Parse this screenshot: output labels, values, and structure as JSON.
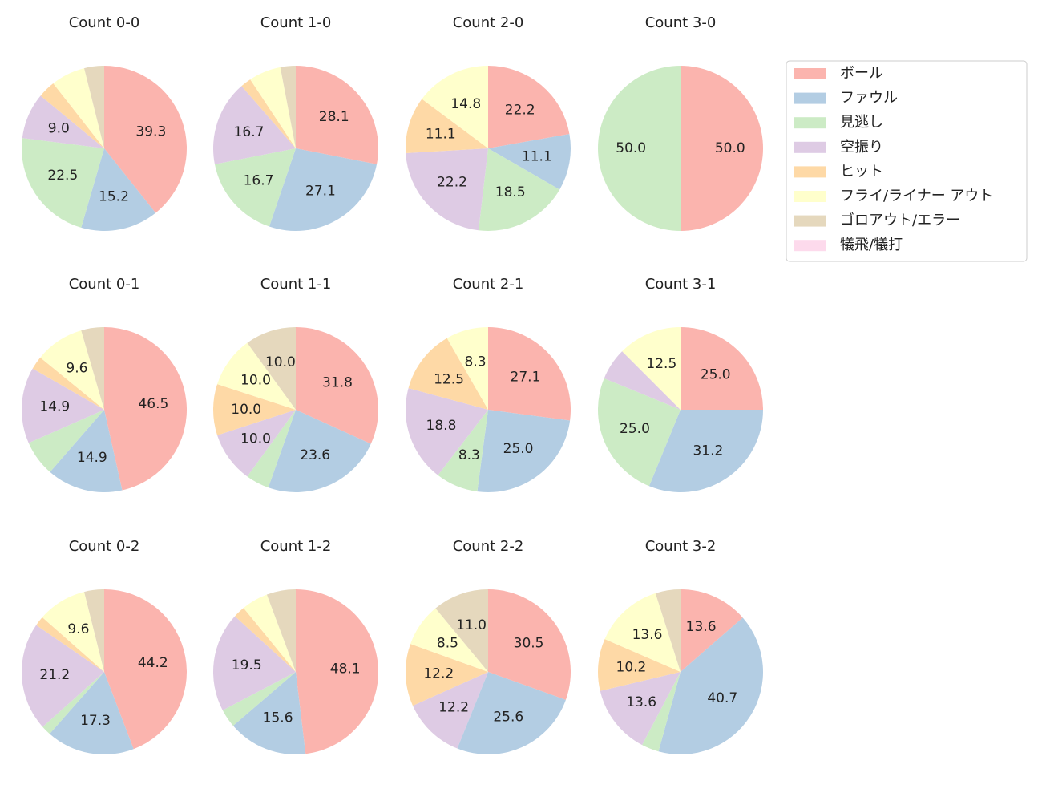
{
  "chart_data": [
    {
      "type": "pie",
      "title": "Count 0-0",
      "categories": [
        "ボール",
        "ファウル",
        "見逃し",
        "空振り",
        "ヒット",
        "フライ/ライナー アウト",
        "ゴロアウト/エラー",
        "犠飛/犠打"
      ],
      "colors": [
        "#fbb4ae",
        "#b3cde3",
        "#ccebc5",
        "#decbe4",
        "#fed9a6",
        "#ffffcc",
        "#e5d8bd",
        "#fddaec"
      ],
      "values": [
        39.3,
        15.2,
        22.5,
        9.0,
        3.4,
        6.7,
        3.9,
        0
      ],
      "value_labels": [
        "39.3",
        "15.2",
        "22.5",
        "9.0",
        null,
        null,
        null,
        null
      ]
    },
    {
      "type": "pie",
      "title": "Count 1-0",
      "values": [
        28.1,
        27.1,
        16.7,
        16.7,
        2.1,
        6.3,
        3.0,
        0
      ],
      "value_labels": [
        "28.1",
        "27.1",
        "16.7",
        "16.7",
        null,
        null,
        null,
        null
      ]
    },
    {
      "type": "pie",
      "title": "Count 2-0",
      "values": [
        22.2,
        11.1,
        18.5,
        22.2,
        11.1,
        14.8,
        0,
        0
      ],
      "value_labels": [
        "22.2",
        "11.1",
        "18.5",
        "22.2",
        "11.1",
        "14.8",
        null,
        null
      ]
    },
    {
      "type": "pie",
      "title": "Count 3-0",
      "values": [
        50,
        0,
        50,
        0,
        0,
        0,
        0,
        0
      ],
      "value_labels": [
        "50.0",
        null,
        "50.0",
        null,
        null,
        null,
        null,
        null
      ]
    },
    {
      "type": "pie",
      "title": "Count 0-1",
      "values": [
        46.5,
        14.9,
        7.0,
        14.9,
        2.6,
        9.6,
        4.5,
        0
      ],
      "value_labels": [
        "46.5",
        "14.9",
        null,
        "14.9",
        null,
        "9.6",
        null,
        null
      ]
    },
    {
      "type": "pie",
      "title": "Count 1-1",
      "values": [
        31.8,
        23.6,
        4.6,
        10,
        10,
        10,
        10,
        0
      ],
      "value_labels": [
        "31.8",
        "23.6",
        null,
        "10.0",
        "10.0",
        "10.0",
        "10.0",
        null
      ]
    },
    {
      "type": "pie",
      "title": "Count 2-1",
      "values": [
        27.1,
        25,
        8.3,
        18.8,
        12.5,
        8.3,
        0,
        0
      ],
      "value_labels": [
        "27.1",
        "25.0",
        "8.3",
        "18.8",
        "12.5",
        "8.3",
        null,
        null
      ]
    },
    {
      "type": "pie",
      "title": "Count 3-1",
      "values": [
        25,
        31.2,
        25,
        6.3,
        0,
        12.5,
        0,
        0
      ],
      "value_labels": [
        "25.0",
        "31.2",
        "25.0",
        null,
        null,
        "12.5",
        null,
        null
      ]
    },
    {
      "type": "pie",
      "title": "Count 0-2",
      "values": [
        44.2,
        17.3,
        1.9,
        21.2,
        1.9,
        9.6,
        3.9,
        0
      ],
      "value_labels": [
        "44.2",
        "17.3",
        null,
        "21.2",
        null,
        "9.6",
        null,
        null
      ]
    },
    {
      "type": "pie",
      "title": "Count 1-2",
      "values": [
        48.1,
        15.6,
        3.6,
        19.5,
        2.3,
        5.2,
        5.7,
        0
      ],
      "value_labels": [
        "48.1",
        "15.6",
        null,
        "19.5",
        null,
        null,
        null,
        null
      ]
    },
    {
      "type": "pie",
      "title": "Count 2-2",
      "values": [
        30.5,
        25.6,
        0,
        12.2,
        12.2,
        8.5,
        11.0,
        0
      ],
      "value_labels": [
        "30.5",
        "25.6",
        null,
        "12.2",
        "12.2",
        "8.5",
        "11.0",
        null
      ]
    },
    {
      "type": "pie",
      "title": "Count 3-2",
      "values": [
        13.6,
        40.7,
        3.4,
        13.6,
        10.2,
        13.6,
        4.9,
        0
      ],
      "value_labels": [
        "13.6",
        "40.7",
        null,
        "13.6",
        "10.2",
        "13.6",
        null,
        null
      ]
    }
  ]
}
